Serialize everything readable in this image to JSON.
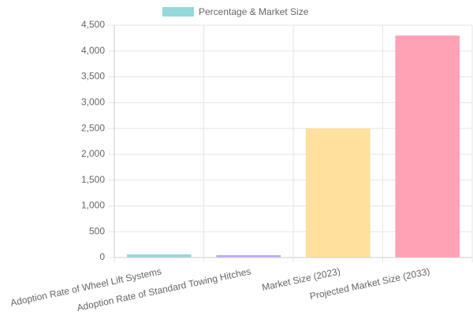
{
  "chart_data": {
    "type": "bar",
    "categories": [
      "Adoption Rate of Wheel Lift Systems",
      "Adoption Rate of Standard Towing Hitches",
      "Market Size (2023)",
      "Projected Market Size (2033)"
    ],
    "series": [
      {
        "name": "Percentage & Market Size",
        "colors": [
          "#93d9d9",
          "#c1a6fa",
          "#ffe09c",
          "#ffa2b5"
        ],
        "values": [
          60,
          45,
          2500,
          4300
        ]
      }
    ],
    "ylim": [
      0,
      4500
    ],
    "yticks": [
      0,
      500,
      {
        "value": 1000,
        "label": "1,000"
      },
      {
        "value": 1500,
        "label": "1,500"
      },
      {
        "value": 2000,
        "label": "2,000"
      },
      {
        "value": 2500,
        "label": "2,500"
      },
      {
        "value": 3000,
        "label": "3,000"
      },
      {
        "value": 3500,
        "label": "3,500"
      },
      {
        "value": 4000,
        "label": "4,000"
      },
      {
        "value": 4500,
        "label": "4,500"
      }
    ],
    "grid": true,
    "legend": "top"
  }
}
